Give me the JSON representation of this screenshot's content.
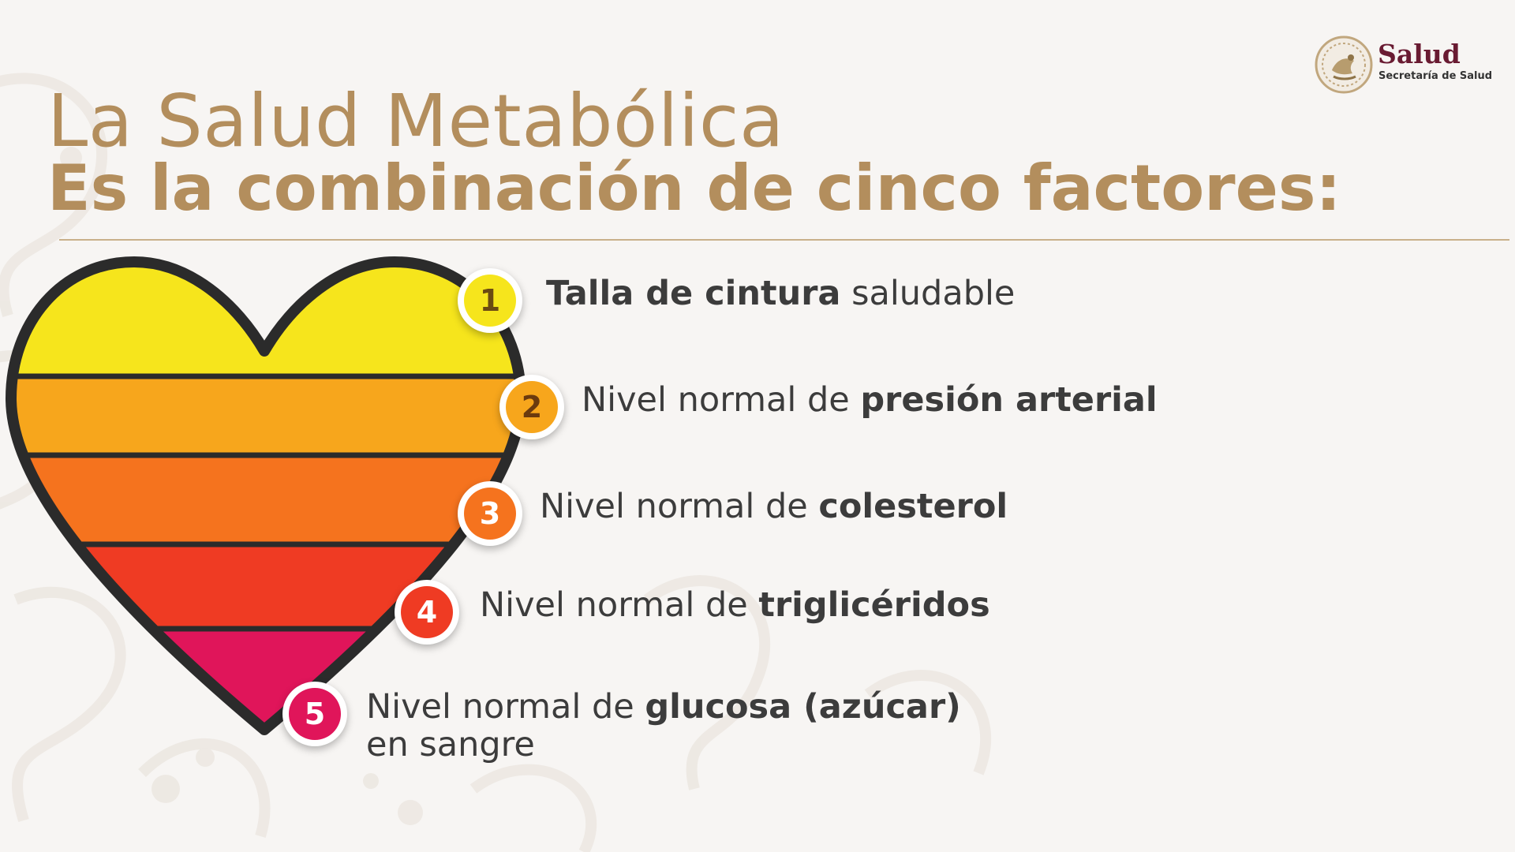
{
  "title": {
    "line1": "La Salud Metabólica",
    "line2": "Es la combinación de cinco factores:"
  },
  "logo": {
    "name": "Salud",
    "subtitle": "Secretaría de Salud",
    "seal_icon": "mexican-eagle-seal"
  },
  "colors": {
    "title": "#b38e5d",
    "logo": "#691b32",
    "stripe1": "#f6e51c",
    "stripe2": "#f7a61c",
    "stripe3": "#f5731e",
    "stripe4": "#ef3b23",
    "stripe5": "#e0155a"
  },
  "factors": [
    {
      "number": "1",
      "pre": "",
      "bold": "Talla de cintura",
      "post": " saludable",
      "line2": "",
      "badge_color": "#f6e51c",
      "number_color": "#6b4a12"
    },
    {
      "number": "2",
      "pre": "Nivel normal de ",
      "bold": "presión arterial",
      "post": "",
      "line2": "",
      "badge_color": "#f7a61c",
      "number_color": "#6b3a0e"
    },
    {
      "number": "3",
      "pre": "Nivel normal de ",
      "bold": "colesterol",
      "post": "",
      "line2": "",
      "badge_color": "#f5731e",
      "number_color": "#ffffff"
    },
    {
      "number": "4",
      "pre": "Nivel normal de ",
      "bold": "triglicéridos",
      "post": "",
      "line2": "",
      "badge_color": "#ef3b23",
      "number_color": "#ffffff"
    },
    {
      "number": "5",
      "pre": "Nivel normal de ",
      "bold": "glucosa (azúcar)",
      "post": "",
      "line2": "en sangre",
      "badge_color": "#e0155a",
      "number_color": "#ffffff"
    }
  ]
}
